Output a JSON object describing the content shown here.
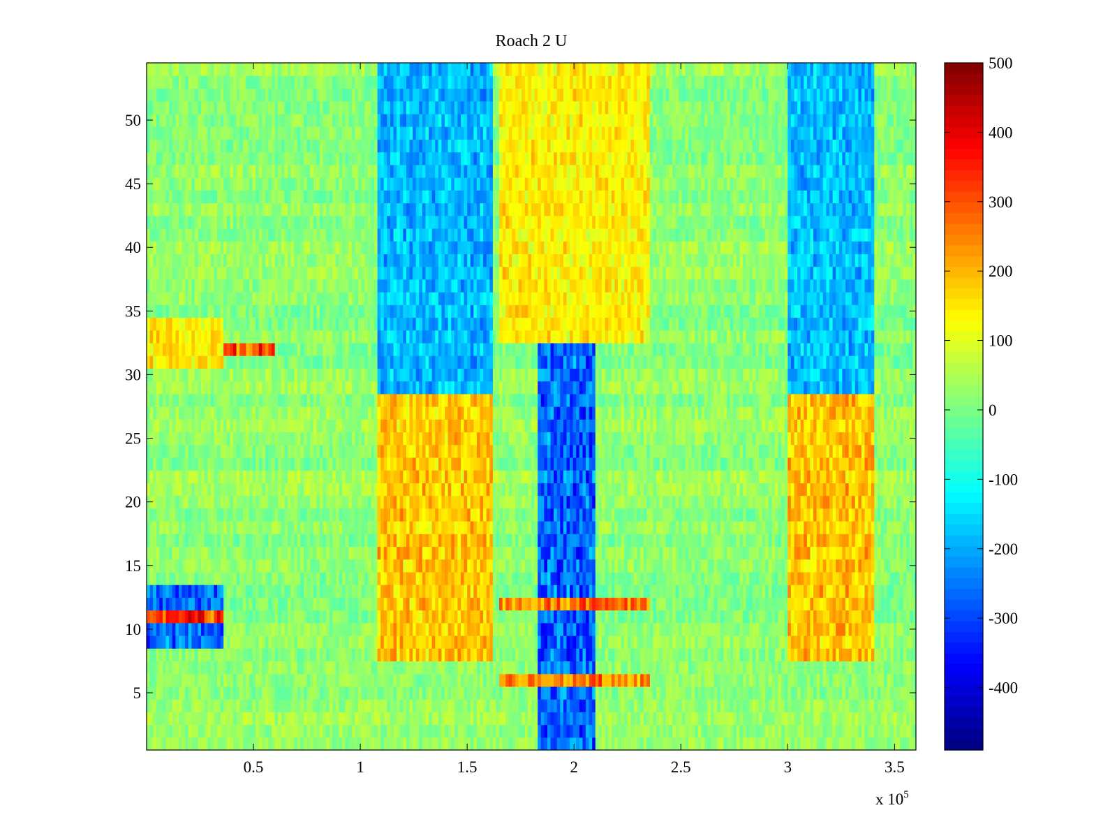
{
  "chart_data": {
    "type": "heatmap",
    "title": "Roach 2 U",
    "xlabel": "",
    "ylabel": "",
    "x_exponent_label": {
      "base": "x 10",
      "exponent": "5"
    },
    "xlim": [
      0,
      360000
    ],
    "ylim": [
      0.5,
      54.5
    ],
    "x_tick_values": [
      50000,
      100000,
      150000,
      200000,
      250000,
      300000,
      350000
    ],
    "x_tick_labels": [
      "0.5",
      "1",
      "1.5",
      "2",
      "2.5",
      "3",
      "3.5"
    ],
    "y_tick_values": [
      5,
      10,
      15,
      20,
      25,
      30,
      35,
      40,
      45,
      50
    ],
    "y_tick_labels": [
      "5",
      "10",
      "15",
      "20",
      "25",
      "30",
      "35",
      "40",
      "45",
      "50"
    ],
    "colormap": "jet",
    "clim": [
      -490,
      500
    ],
    "colorbar_tick_values": [
      500,
      400,
      300,
      200,
      100,
      0,
      -100,
      -200,
      -300,
      -400
    ],
    "colorbar_tick_labels": [
      "500",
      "400",
      "300",
      "200",
      "100",
      "0",
      "-100",
      "-200",
      "-300",
      "-400"
    ],
    "rows": 54,
    "regions": [
      {
        "x_range": [
          0,
          36000
        ],
        "y_rows": [
          9,
          13
        ],
        "value": -320
      },
      {
        "x_range": [
          0,
          36000
        ],
        "y_rows": [
          11,
          11
        ],
        "value": 380
      },
      {
        "x_range": [
          12000,
          60000
        ],
        "y_rows": [
          32,
          32
        ],
        "value": 350
      },
      {
        "x_range": [
          0,
          36000
        ],
        "y_rows": [
          31,
          34
        ],
        "value": 180
      },
      {
        "x_range": [
          108000,
          162000
        ],
        "y_rows": [
          8,
          28
        ],
        "value": 220
      },
      {
        "x_range": [
          300000,
          340000
        ],
        "y_rows": [
          8,
          28
        ],
        "value": 230
      },
      {
        "x_range": [
          108000,
          162000
        ],
        "y_rows": [
          29,
          54
        ],
        "value": -230
      },
      {
        "x_range": [
          300000,
          340000
        ],
        "y_rows": [
          29,
          54
        ],
        "value": -220
      },
      {
        "x_range": [
          183000,
          210000
        ],
        "y_rows": [
          1,
          54
        ],
        "value": -330
      },
      {
        "x_range": [
          165000,
          235000
        ],
        "y_rows": [
          33,
          54
        ],
        "value": 170
      },
      {
        "x_range": [
          165000,
          235000
        ],
        "y_rows": [
          6,
          6
        ],
        "value": 300
      },
      {
        "x_range": [
          165000,
          235000
        ],
        "y_rows": [
          12,
          12
        ],
        "value": 320
      }
    ]
  }
}
